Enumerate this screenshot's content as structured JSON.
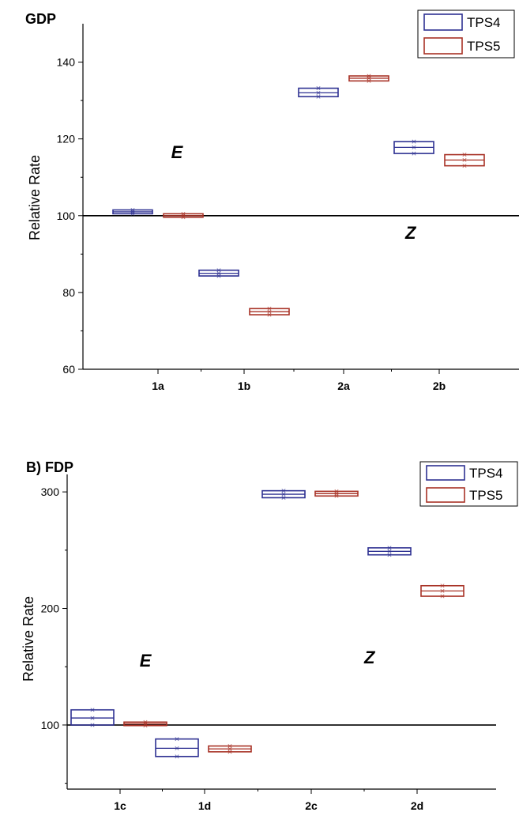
{
  "chart_data": [
    {
      "type": "box",
      "title": "GDP",
      "ylabel": "Relative Rate",
      "xlabel": "",
      "ylim": [
        60,
        150
      ],
      "yticks": [
        60,
        80,
        100,
        120,
        140
      ],
      "categories": [
        "1a",
        "1b",
        "2a",
        "2b"
      ],
      "reference_line": 100,
      "legend": {
        "position": "top-right"
      },
      "annotations": [
        {
          "text": "E",
          "x": 0.22,
          "y": 115
        },
        {
          "text": "Z",
          "x": 2.7,
          "y": 94
        }
      ],
      "series": [
        {
          "name": "TPS4",
          "color": "#2e3192",
          "boxes": [
            {
              "category": "1a",
              "low": 100.5,
              "median": 101.0,
              "high": 101.5
            },
            {
              "category": "1b",
              "low": 84.3,
              "median": 85.0,
              "high": 85.8
            },
            {
              "category": "2a",
              "low": 131.0,
              "median": 132.0,
              "high": 133.2
            },
            {
              "category": "2b",
              "low": 116.2,
              "median": 117.8,
              "high": 119.3
            }
          ]
        },
        {
          "name": "TPS5",
          "color": "#a83226",
          "boxes": [
            {
              "category": "1a",
              "low": 99.6,
              "median": 100.0,
              "high": 100.5
            },
            {
              "category": "1b",
              "low": 74.2,
              "median": 75.0,
              "high": 75.8
            },
            {
              "category": "2a",
              "low": 135.1,
              "median": 135.8,
              "high": 136.4
            },
            {
              "category": "2b",
              "low": 113.0,
              "median": 114.5,
              "high": 115.9
            }
          ]
        }
      ]
    },
    {
      "type": "box",
      "title": "B)  FDP",
      "ylabel": "Relative Rate",
      "xlabel": "",
      "ylim": [
        45,
        315
      ],
      "yticks": [
        100,
        200,
        300
      ],
      "minor_yticks": [
        50,
        150,
        250
      ],
      "categories": [
        "1c",
        "1d",
        "2c",
        "2d"
      ],
      "reference_line": 100,
      "legend": {
        "position": "top-right"
      },
      "annotations": [
        {
          "text": "E",
          "x": 0.3,
          "y": 150
        },
        {
          "text": "Z",
          "x": 2.55,
          "y": 153
        }
      ],
      "series": [
        {
          "name": "TPS4",
          "color": "#2e3192",
          "boxes": [
            {
              "category": "1c",
              "low": 100.0,
              "median": 106.0,
              "high": 113.0
            },
            {
              "category": "1d",
              "low": 73.0,
              "median": 80.0,
              "high": 88.0
            },
            {
              "category": "2c",
              "low": 295.0,
              "median": 298.0,
              "high": 301.0
            },
            {
              "category": "2d",
              "low": 246.0,
              "median": 249.0,
              "high": 252.0
            }
          ]
        },
        {
          "name": "TPS5",
          "color": "#a83226",
          "boxes": [
            {
              "category": "1c",
              "low": 99.5,
              "median": 101.0,
              "high": 102.5
            },
            {
              "category": "1d",
              "low": 77.0,
              "median": 79.5,
              "high": 82.0
            },
            {
              "category": "2c",
              "low": 296.5,
              "median": 298.5,
              "high": 300.5
            },
            {
              "category": "2d",
              "low": 210.5,
              "median": 215.0,
              "high": 219.5
            }
          ]
        }
      ]
    }
  ]
}
